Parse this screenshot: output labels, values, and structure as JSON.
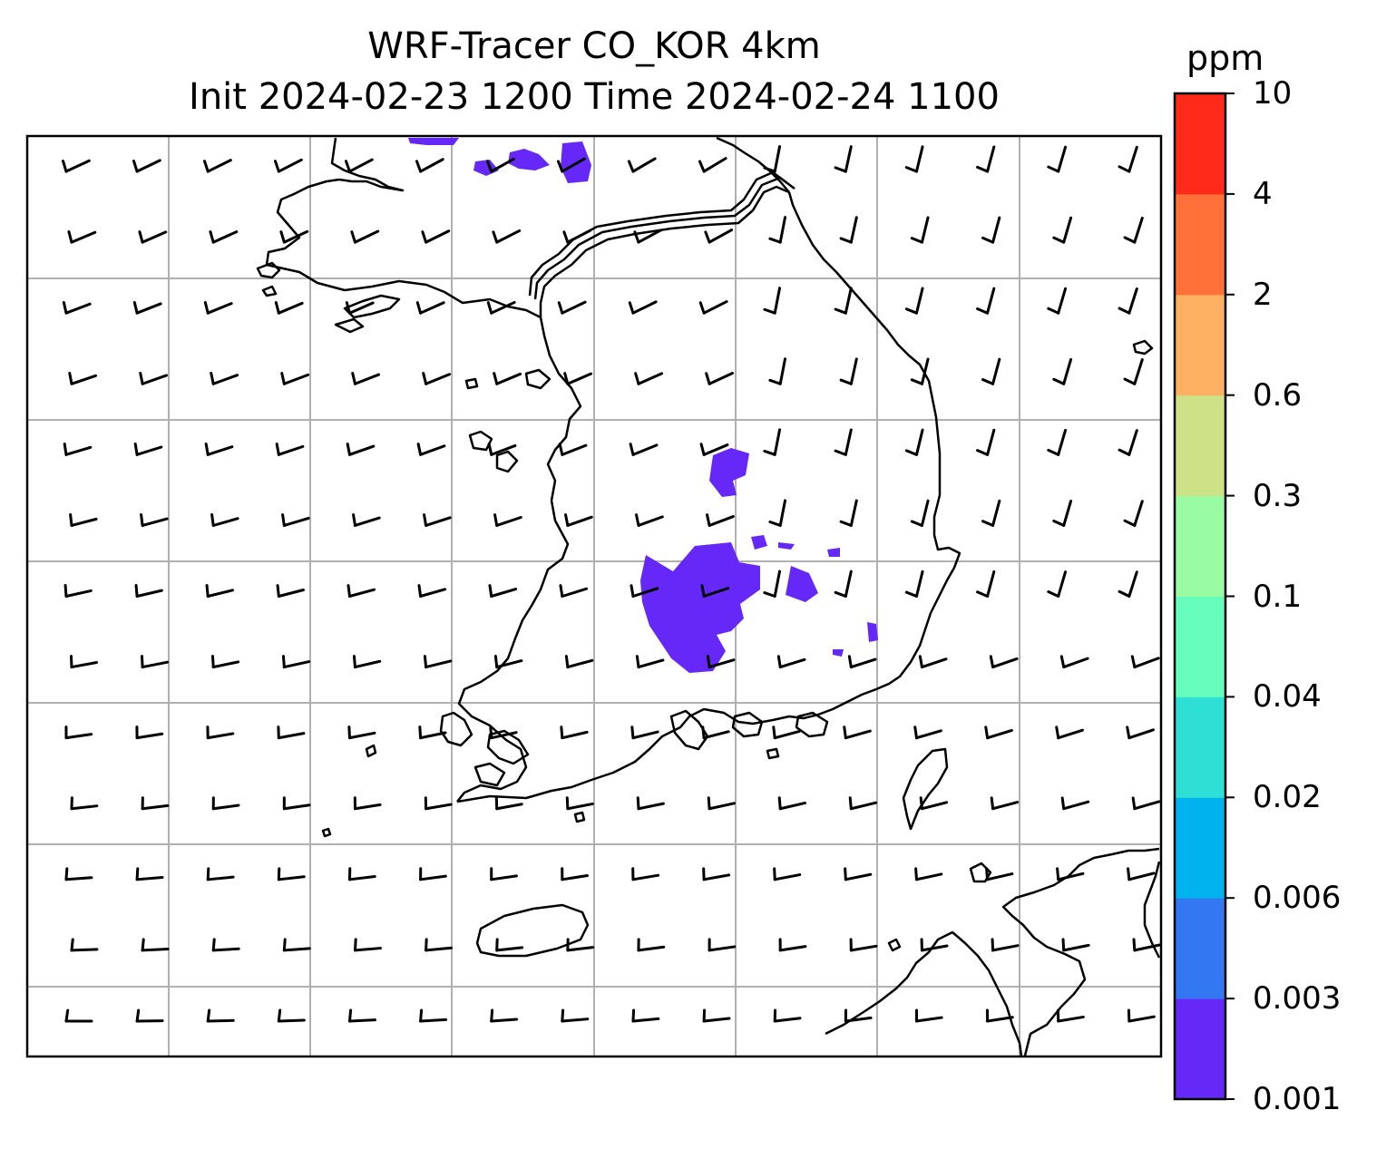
{
  "title": {
    "line1": "WRF-Tracer CO_KOR 4km",
    "line2": "Init 2024-02-23 1200 Time 2024-02-24 1100"
  },
  "colorbar": {
    "unit": "ppm",
    "levels": [
      "0.001",
      "0.003",
      "0.006",
      "0.02",
      "0.04",
      "0.1",
      "0.3",
      "0.6",
      "2",
      "4",
      "10"
    ],
    "colors": [
      "#6628f7",
      "#3477f2",
      "#00b2ed",
      "#2edfd6",
      "#66fcbc",
      "#99fca2",
      "#cde187",
      "#fdb061",
      "#ff7139",
      "#ff2a1a"
    ]
  },
  "map": {
    "frame_color": "#000000",
    "gridline_color": "#b0b0b0",
    "tracer_fill_color": "#6628f7",
    "coastline_color": "#000000",
    "wind_barb_color": "#000000"
  }
}
